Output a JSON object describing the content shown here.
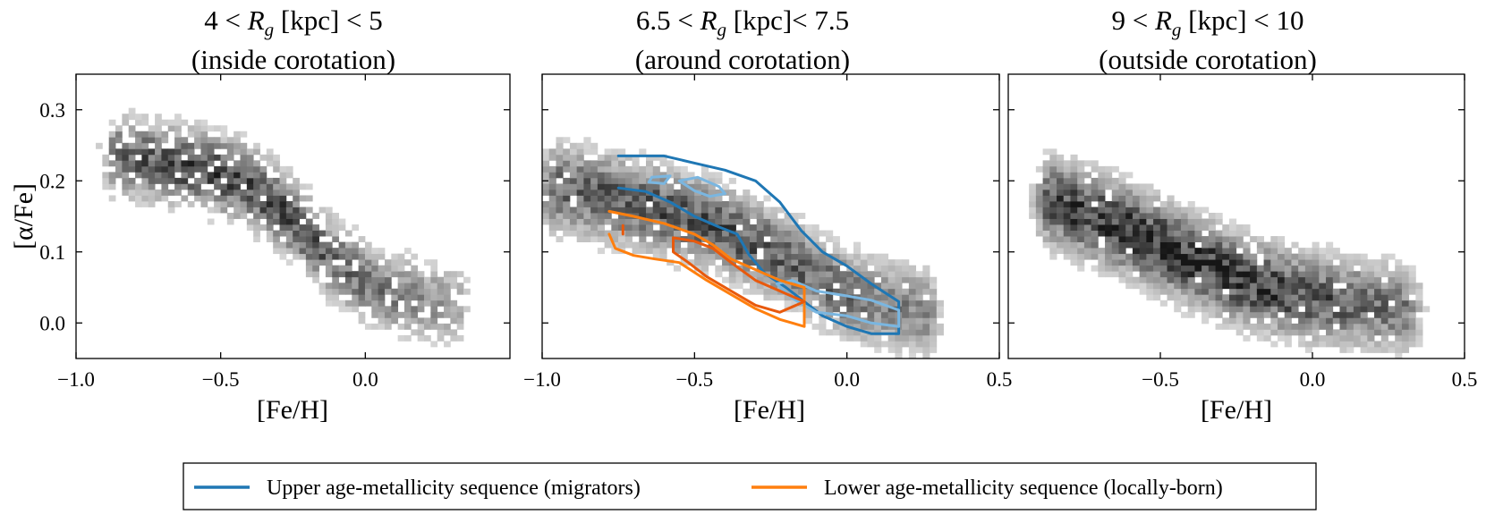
{
  "figure": {
    "legend": {
      "entries": [
        {
          "label": "Upper age-metallicity sequence (migrators)",
          "color": "#1f77b4"
        },
        {
          "label": "Lower age-metallicity sequence (locally-born)",
          "color": "#ff7f0e"
        }
      ]
    }
  },
  "chart_data": [
    {
      "type": "heatmap",
      "title_line1": "4 < R_g [kpc] < 5",
      "title_line2": "(inside corotation)",
      "xlabel": "[Fe/H]",
      "ylabel": "[α/Fe]",
      "xlim": [
        -1.0,
        0.5
      ],
      "ylim": [
        -0.05,
        0.35
      ],
      "x_ticks": [
        -1.0,
        -0.5,
        0.0
      ],
      "x_tick_labels": [
        "−1.0",
        "−0.5",
        "0.0"
      ],
      "y_ticks": [
        0.0,
        0.1,
        0.2,
        0.3
      ],
      "y_tick_labels": [
        "0.0",
        "0.1",
        "0.2",
        "0.3"
      ],
      "colormap": "Greys",
      "density": {
        "sequences": [
          {
            "points": [
              [
                -0.85,
                0.235
              ],
              [
                -0.55,
                0.215
              ],
              [
                -0.4,
                0.195
              ],
              [
                -0.25,
                0.145
              ],
              [
                -0.1,
                0.085
              ],
              [
                0.05,
                0.045
              ],
              [
                0.3,
                0.025
              ]
            ],
            "width": 0.05,
            "peak": 0.85,
            "length_scale": 0.35
          }
        ],
        "sparsity": 0.45
      }
    },
    {
      "type": "heatmap",
      "title_line1": "6.5 < R_g [kpc]< 7.5",
      "title_line2": "(around corotation)",
      "xlabel": "[Fe/H]",
      "xlim": [
        -1.0,
        0.5
      ],
      "ylim": [
        -0.05,
        0.35
      ],
      "x_ticks": [
        -1.0,
        -0.5,
        0.0,
        0.5
      ],
      "x_tick_labels": [
        "−1.0",
        "−0.5",
        "0.0",
        "0.5"
      ],
      "y_ticks": [
        0.0,
        0.1,
        0.2,
        0.3
      ],
      "colormap": "Greys",
      "density": {
        "sequences": [
          {
            "points": [
              [
                -0.95,
                0.19
              ],
              [
                -0.7,
                0.17
              ],
              [
                -0.45,
                0.14
              ],
              [
                -0.2,
                0.09
              ],
              [
                0.0,
                0.04
              ],
              [
                0.25,
                0.015
              ]
            ],
            "width": 0.055,
            "peak": 0.8,
            "length_scale": 0.6
          }
        ],
        "sparsity": 0.15
      },
      "contours": [
        {
          "series": "Upper age-metallicity sequence (migrators)",
          "color": "#1f77b4",
          "level": "outer",
          "x": [
            -0.75,
            -0.6,
            -0.5,
            -0.4,
            -0.3,
            -0.22,
            -0.15,
            -0.08,
            0.0,
            0.08,
            0.17,
            0.17,
            0.08,
            0.0,
            -0.08,
            -0.14,
            -0.2,
            -0.27,
            -0.32,
            -0.36,
            -0.42,
            -0.5,
            -0.58,
            -0.66,
            -0.75
          ],
          "y": [
            0.235,
            0.235,
            0.225,
            0.215,
            0.2,
            0.17,
            0.13,
            0.1,
            0.08,
            0.055,
            0.03,
            -0.015,
            -0.015,
            -0.005,
            0.01,
            0.03,
            0.05,
            0.07,
            0.095,
            0.125,
            0.135,
            0.15,
            0.17,
            0.185,
            0.19
          ]
        },
        {
          "series": "Upper age-metallicity sequence (migrators)",
          "color": "#7ab6e0",
          "level": "inner",
          "x": [
            -0.23,
            -0.18,
            -0.1,
            0.0,
            0.08,
            0.17,
            0.17,
            0.08,
            0.0,
            -0.1,
            -0.18,
            -0.23
          ],
          "y": [
            0.055,
            0.06,
            0.045,
            0.038,
            0.032,
            0.018,
            -0.005,
            0.0,
            0.01,
            0.015,
            0.035,
            0.055
          ]
        },
        {
          "series": "Upper age-metallicity sequence (migrators)",
          "color": "#7ab6e0",
          "level": "inner",
          "x": [
            -0.55,
            -0.49,
            -0.42,
            -0.4,
            -0.45,
            -0.5,
            -0.55
          ],
          "y": [
            0.2,
            0.205,
            0.192,
            0.182,
            0.178,
            0.186,
            0.2
          ]
        },
        {
          "series": "Upper age-metallicity sequence (migrators)",
          "color": "#7ab6e0",
          "level": "inner",
          "x": [
            -0.64,
            -0.58,
            -0.6,
            -0.65,
            -0.64
          ],
          "y": [
            0.205,
            0.207,
            0.196,
            0.198,
            0.205
          ]
        },
        {
          "series": "Lower age-metallicity sequence (locally-born)",
          "color": "#ff7f0e",
          "level": "outer",
          "x": [
            -0.78,
            -0.7,
            -0.6,
            -0.5,
            -0.44,
            -0.38,
            -0.3,
            -0.22,
            -0.14,
            -0.14,
            -0.22,
            -0.3,
            -0.38,
            -0.46,
            -0.55,
            -0.63,
            -0.7,
            -0.76,
            -0.78
          ],
          "y": [
            0.157,
            0.15,
            0.14,
            0.125,
            0.11,
            0.09,
            0.075,
            0.06,
            0.05,
            -0.005,
            0.005,
            0.02,
            0.04,
            0.06,
            0.085,
            0.09,
            0.095,
            0.105,
            0.125
          ]
        },
        {
          "series": "Lower age-metallicity sequence (locally-born)",
          "color": "#e8590c",
          "level": "inner",
          "x": [
            -0.57,
            -0.5,
            -0.44,
            -0.38,
            -0.3,
            -0.22,
            -0.14,
            -0.22,
            -0.3,
            -0.38,
            -0.46,
            -0.52,
            -0.57,
            -0.57
          ],
          "y": [
            0.12,
            0.115,
            0.105,
            0.085,
            0.06,
            0.045,
            0.03,
            0.015,
            0.025,
            0.045,
            0.065,
            0.085,
            0.1,
            0.12
          ]
        },
        {
          "series": "Lower age-metallicity sequence (locally-born)",
          "color": "#e8590c",
          "level": "inner",
          "x": [
            -0.735,
            -0.735
          ],
          "y": [
            0.137,
            0.125
          ]
        }
      ]
    },
    {
      "type": "heatmap",
      "title_line1": "9 < R_g [kpc] < 10",
      "title_line2": "(outside corotation)",
      "xlabel": "[Fe/H]",
      "xlim": [
        -1.0,
        0.5
      ],
      "ylim": [
        -0.05,
        0.35
      ],
      "x_ticks": [
        -0.5,
        0.0,
        0.5
      ],
      "x_tick_labels": [
        "−0.5",
        "0.0",
        "0.5"
      ],
      "y_ticks": [
        0.0,
        0.1,
        0.2,
        0.3
      ],
      "colormap": "Greys",
      "density": {
        "sequences": [
          {
            "points": [
              [
                -0.85,
                0.17
              ],
              [
                -0.6,
                0.13
              ],
              [
                -0.4,
                0.09
              ],
              [
                -0.2,
                0.055
              ],
              [
                0.0,
                0.035
              ],
              [
                0.3,
                0.02
              ]
            ],
            "width": 0.055,
            "peak": 1.0,
            "length_scale": 0.45
          }
        ],
        "sparsity": 0.12
      }
    }
  ]
}
